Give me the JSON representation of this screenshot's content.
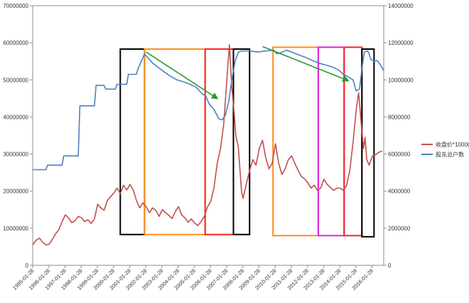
{
  "chart_data": {
    "type": "line",
    "x_labels": [
      "1995-01-28",
      "1996-01-28",
      "1997-01-28",
      "1998-01-28",
      "1999-01-28",
      "2000-01-28",
      "2001-01-28",
      "2002-01-28",
      "2003-01-28",
      "2004-01-28",
      "2005-01-28",
      "2006-01-28",
      "2007-01-28",
      "2008-01-28",
      "2009-01-28",
      "2010-01-28",
      "2011-01-28",
      "2012-01-28",
      "2013-01-28",
      "2014-01-28",
      "2015-01-28",
      "2016-01-28"
    ],
    "x_range": [
      1995.08,
      2016.8
    ],
    "left_axis": {
      "ylim": [
        0,
        70000000
      ],
      "ticks": [
        0,
        10000000,
        20000000,
        30000000,
        40000000,
        50000000,
        60000000,
        70000000
      ],
      "tick_labels": [
        "0",
        "10000000",
        "20000000",
        "30000000",
        "40000000",
        "50000000",
        "60000000",
        "70000000"
      ]
    },
    "right_axis": {
      "ylim": [
        0,
        14000000
      ],
      "ticks": [
        0,
        2000000,
        4000000,
        6000000,
        8000000,
        10000000,
        12000000,
        14000000
      ],
      "tick_labels": [
        "0",
        "2000000",
        "4000000",
        "6000000",
        "8000000",
        "10000000",
        "12000000",
        "14000000"
      ]
    },
    "series": [
      {
        "name": "收盘价*10000",
        "axis": "left",
        "color": "#c0504d",
        "points": [
          [
            1995.08,
            5500000
          ],
          [
            1995.3,
            6800000
          ],
          [
            1995.5,
            7300000
          ],
          [
            1995.7,
            6200000
          ],
          [
            1995.9,
            5500000
          ],
          [
            1996.1,
            5700000
          ],
          [
            1996.3,
            7000000
          ],
          [
            1996.5,
            8500000
          ],
          [
            1996.7,
            9600000
          ],
          [
            1996.9,
            11800000
          ],
          [
            1997.1,
            13600000
          ],
          [
            1997.3,
            12800000
          ],
          [
            1997.5,
            11500000
          ],
          [
            1997.7,
            12000000
          ],
          [
            1997.9,
            13200000
          ],
          [
            1998.1,
            12800000
          ],
          [
            1998.3,
            11800000
          ],
          [
            1998.5,
            12300000
          ],
          [
            1998.7,
            11300000
          ],
          [
            1998.9,
            12500000
          ],
          [
            1999.1,
            16500000
          ],
          [
            1999.3,
            15500000
          ],
          [
            1999.5,
            14800000
          ],
          [
            1999.7,
            17500000
          ],
          [
            1999.9,
            18500000
          ],
          [
            2000.1,
            19500000
          ],
          [
            2000.3,
            20800000
          ],
          [
            2000.5,
            19300000
          ],
          [
            2000.7,
            21600000
          ],
          [
            2000.9,
            20300000
          ],
          [
            2001.1,
            21800000
          ],
          [
            2001.3,
            20300000
          ],
          [
            2001.5,
            17500000
          ],
          [
            2001.7,
            15500000
          ],
          [
            2001.9,
            16800000
          ],
          [
            2002.1,
            15800000
          ],
          [
            2002.3,
            14200000
          ],
          [
            2002.5,
            15500000
          ],
          [
            2002.7,
            14800000
          ],
          [
            2002.9,
            13200000
          ],
          [
            2003.1,
            15000000
          ],
          [
            2003.3,
            14200000
          ],
          [
            2003.5,
            13500000
          ],
          [
            2003.7,
            12600000
          ],
          [
            2003.9,
            14500000
          ],
          [
            2004.1,
            15800000
          ],
          [
            2004.3,
            13600000
          ],
          [
            2004.5,
            12800000
          ],
          [
            2004.7,
            11600000
          ],
          [
            2004.9,
            12500000
          ],
          [
            2005.1,
            11400000
          ],
          [
            2005.3,
            10700000
          ],
          [
            2005.5,
            11800000
          ],
          [
            2005.7,
            13200000
          ],
          [
            2005.9,
            15800000
          ],
          [
            2006.1,
            17200000
          ],
          [
            2006.3,
            21000000
          ],
          [
            2006.5,
            27500000
          ],
          [
            2006.7,
            31500000
          ],
          [
            2006.9,
            38000000
          ],
          [
            2007.1,
            50500000
          ],
          [
            2007.25,
            59500000
          ],
          [
            2007.4,
            48000000
          ],
          [
            2007.55,
            41000000
          ],
          [
            2007.65,
            35000000
          ],
          [
            2007.8,
            32000000
          ],
          [
            2007.9,
            26000000
          ],
          [
            2008.0,
            20000000
          ],
          [
            2008.1,
            18000000
          ],
          [
            2008.3,
            22000000
          ],
          [
            2008.5,
            25500000
          ],
          [
            2008.7,
            28500000
          ],
          [
            2008.9,
            27000000
          ],
          [
            2009.1,
            31500000
          ],
          [
            2009.3,
            33700000
          ],
          [
            2009.5,
            29000000
          ],
          [
            2009.7,
            26000000
          ],
          [
            2009.9,
            27500000
          ],
          [
            2010.1,
            32800000
          ],
          [
            2010.3,
            27500000
          ],
          [
            2010.5,
            24500000
          ],
          [
            2010.7,
            26000000
          ],
          [
            2010.9,
            28500000
          ],
          [
            2011.1,
            29500000
          ],
          [
            2011.3,
            27500000
          ],
          [
            2011.5,
            25600000
          ],
          [
            2011.7,
            24000000
          ],
          [
            2011.9,
            23300000
          ],
          [
            2012.1,
            22300000
          ],
          [
            2012.3,
            20800000
          ],
          [
            2012.5,
            21600000
          ],
          [
            2012.7,
            20200000
          ],
          [
            2012.9,
            20800000
          ],
          [
            2013.1,
            23200000
          ],
          [
            2013.3,
            21800000
          ],
          [
            2013.5,
            21000000
          ],
          [
            2013.7,
            20200000
          ],
          [
            2013.9,
            20800000
          ],
          [
            2014.1,
            20800000
          ],
          [
            2014.3,
            20200000
          ],
          [
            2014.5,
            21500000
          ],
          [
            2014.7,
            25500000
          ],
          [
            2014.9,
            33000000
          ],
          [
            2015.1,
            42000000
          ],
          [
            2015.25,
            46500000
          ],
          [
            2015.4,
            38500000
          ],
          [
            2015.55,
            31500000
          ],
          [
            2015.65,
            34500000
          ],
          [
            2015.75,
            28500000
          ],
          [
            2015.9,
            27000000
          ],
          [
            2016.1,
            29500000
          ],
          [
            2016.3,
            29800000
          ],
          [
            2016.5,
            30500000
          ],
          [
            2016.7,
            30800000
          ]
        ]
      },
      {
        "name": "股东总户数",
        "axis": "left",
        "color": "#4f81bd",
        "points": [
          [
            1995.08,
            25800000
          ],
          [
            1995.9,
            25800000
          ],
          [
            1996.0,
            27000000
          ],
          [
            1996.9,
            27000000
          ],
          [
            1997.0,
            29500000
          ],
          [
            1997.9,
            29500000
          ],
          [
            1998.0,
            43000000
          ],
          [
            1998.9,
            43000000
          ],
          [
            1999.0,
            48500000
          ],
          [
            1999.5,
            48500000
          ],
          [
            1999.6,
            47500000
          ],
          [
            2000.2,
            47500000
          ],
          [
            2000.3,
            48800000
          ],
          [
            2000.9,
            48800000
          ],
          [
            2001.0,
            51500000
          ],
          [
            2001.5,
            51500000
          ],
          [
            2001.6,
            53000000
          ],
          [
            2001.8,
            55000000
          ],
          [
            2002.0,
            57000000
          ],
          [
            2002.2,
            56000000
          ],
          [
            2002.5,
            54500000
          ],
          [
            2002.8,
            53500000
          ],
          [
            2003.2,
            52200000
          ],
          [
            2003.6,
            51000000
          ],
          [
            2004.0,
            50000000
          ],
          [
            2004.4,
            49500000
          ],
          [
            2004.8,
            48800000
          ],
          [
            2005.2,
            48000000
          ],
          [
            2005.5,
            46500000
          ],
          [
            2005.8,
            45500000
          ],
          [
            2006.0,
            43500000
          ],
          [
            2006.3,
            42000000
          ],
          [
            2006.6,
            39500000
          ],
          [
            2006.8,
            39200000
          ],
          [
            2007.0,
            40500000
          ],
          [
            2007.2,
            44000000
          ],
          [
            2007.4,
            50000000
          ],
          [
            2007.6,
            55000000
          ],
          [
            2007.8,
            57500000
          ],
          [
            2008.0,
            57800000
          ],
          [
            2008.5,
            57800000
          ],
          [
            2009.0,
            57500000
          ],
          [
            2009.5,
            57800000
          ],
          [
            2010.0,
            58000000
          ],
          [
            2010.2,
            57000000
          ],
          [
            2010.5,
            57500000
          ],
          [
            2010.8,
            58000000
          ],
          [
            2011.1,
            57500000
          ],
          [
            2011.5,
            56800000
          ],
          [
            2012.0,
            56000000
          ],
          [
            2012.4,
            55200000
          ],
          [
            2012.8,
            54500000
          ],
          [
            2013.2,
            54000000
          ],
          [
            2013.6,
            53500000
          ],
          [
            2014.0,
            52700000
          ],
          [
            2014.3,
            51500000
          ],
          [
            2014.6,
            50800000
          ],
          [
            2014.9,
            50000000
          ],
          [
            2015.1,
            47000000
          ],
          [
            2015.3,
            47500000
          ],
          [
            2015.45,
            53000000
          ],
          [
            2015.6,
            57500000
          ],
          [
            2015.8,
            57800000
          ],
          [
            2015.9,
            57000000
          ],
          [
            2016.0,
            55500000
          ],
          [
            2016.2,
            55000000
          ],
          [
            2016.4,
            55200000
          ],
          [
            2016.6,
            54000000
          ],
          [
            2016.8,
            52500000
          ]
        ]
      }
    ],
    "annotations": {
      "boxes": [
        {
          "color": "#000000",
          "x": [
            2000.5,
            2002.0
          ],
          "y": [
            8300000,
            58300000
          ]
        },
        {
          "color": "#ff8c1a",
          "x": [
            2002.0,
            2005.75
          ],
          "y": [
            8300000,
            58300000
          ]
        },
        {
          "color": "#ff2020",
          "x": [
            2005.75,
            2007.5
          ],
          "y": [
            8300000,
            58300000
          ]
        },
        {
          "color": "#000000",
          "x": [
            2007.5,
            2008.5
          ],
          "y": [
            8300000,
            58300000
          ]
        },
        {
          "color": "#ff8c1a",
          "x": [
            2009.95,
            2012.75
          ],
          "y": [
            8000000,
            58800000
          ]
        },
        {
          "color": "#e020e0",
          "x": [
            2012.75,
            2014.35
          ],
          "y": [
            8000000,
            58800000
          ]
        },
        {
          "color": "#ff2020",
          "x": [
            2014.35,
            2015.45
          ],
          "y": [
            8000000,
            58800000
          ]
        },
        {
          "color": "#000000",
          "x": [
            2015.45,
            2016.2
          ],
          "y": [
            7700000,
            58300000
          ]
        }
      ],
      "arrows": [
        {
          "color": "#2e9a2e",
          "from": [
            2002.1,
            57500000
          ],
          "to": [
            2006.5,
            45000000
          ]
        },
        {
          "color": "#2e9a2e",
          "from": [
            2009.3,
            59000000
          ],
          "to": [
            2014.6,
            49800000
          ]
        }
      ]
    },
    "legend": {
      "position": "right"
    },
    "grid": false
  }
}
